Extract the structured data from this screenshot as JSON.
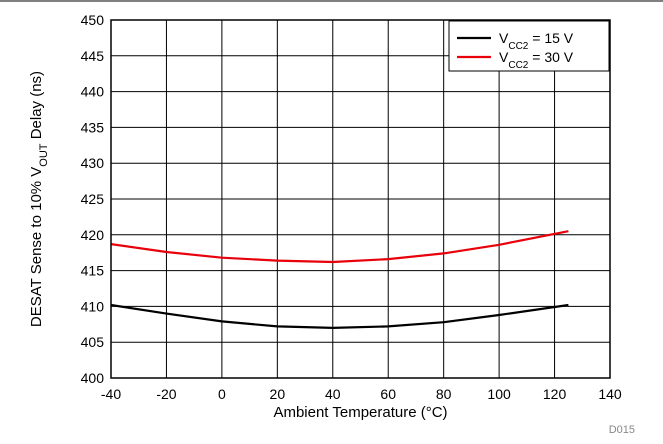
{
  "chart_data": {
    "type": "line",
    "xlabel": "Ambient Temperature (°C)",
    "ylabel_parts": {
      "before": "DESAT Sense to 10% V",
      "sub": "OUT",
      "after": " Delay (ns)"
    },
    "xlim": [
      -40,
      140
    ],
    "ylim": [
      400,
      450
    ],
    "x_ticks": [
      -40,
      -20,
      0,
      20,
      40,
      60,
      80,
      100,
      120,
      140
    ],
    "y_ticks": [
      400,
      405,
      410,
      415,
      420,
      425,
      430,
      435,
      440,
      445,
      450
    ],
    "grid": true,
    "legend_position": "top-right",
    "series": [
      {
        "legend": {
          "base": "V",
          "sub": "CC2",
          "rest": " = 15 V"
        },
        "color": "#000000",
        "x": [
          -40,
          -20,
          0,
          20,
          40,
          60,
          80,
          100,
          125
        ],
        "y": [
          410.2,
          409.0,
          407.9,
          407.2,
          407.0,
          407.2,
          407.8,
          408.8,
          410.2
        ]
      },
      {
        "legend": {
          "base": "V",
          "sub": "CC2",
          "rest": " = 30 V"
        },
        "color": "#e8000b",
        "x": [
          -40,
          -20,
          0,
          20,
          40,
          60,
          80,
          100,
          125
        ],
        "y": [
          418.7,
          417.6,
          416.8,
          416.4,
          416.2,
          416.6,
          417.4,
          418.6,
          420.5
        ]
      }
    ],
    "figure_code": "D015"
  }
}
